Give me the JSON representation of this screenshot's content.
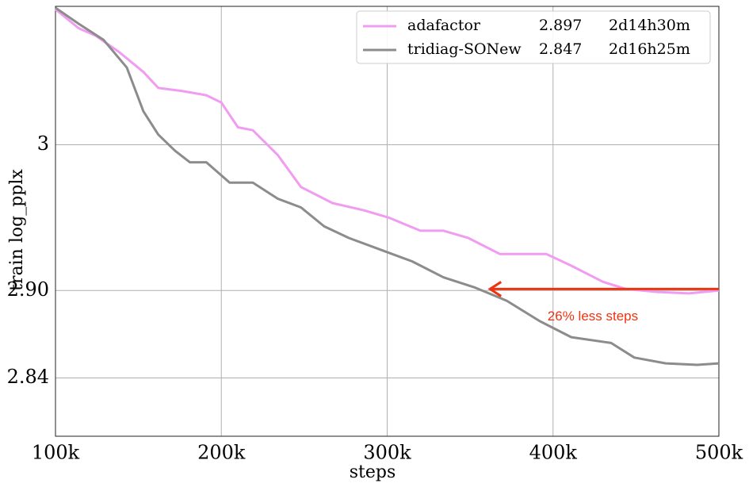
{
  "chart_data": {
    "type": "line",
    "x_label": "steps",
    "y_label": "train log_pplx",
    "xlim": [
      100000,
      500000
    ],
    "ylim": [
      2.8,
      3.095
    ],
    "xticks": [
      {
        "value": 100000,
        "label": "100k"
      },
      {
        "value": 200000,
        "label": "200k"
      },
      {
        "value": 300000,
        "label": "300k"
      },
      {
        "value": 400000,
        "label": "400k"
      },
      {
        "value": 500000,
        "label": "500k"
      }
    ],
    "yticks": [
      2.84,
      {
        "value": 2.9,
        "label": "2.90"
      },
      3
    ],
    "grid": true,
    "legend": "upper right",
    "series": [
      {
        "name": "adafactor",
        "final_value": 2.897,
        "time": "2d14h30m",
        "color": "#f09cf0",
        "x": [
          100000,
          114000,
          124000,
          138000,
          153000,
          162000,
          176000,
          191000,
          200000,
          210000,
          219000,
          234000,
          248000,
          267000,
          286000,
          301000,
          320000,
          334000,
          349000,
          368000,
          396000,
          411000,
          430000,
          444000,
          463000,
          482000,
          500000
        ],
        "values": [
          3.093,
          3.08,
          3.075,
          3.064,
          3.05,
          3.039,
          3.037,
          3.034,
          3.029,
          3.012,
          3.01,
          2.993,
          2.971,
          2.96,
          2.955,
          2.95,
          2.941,
          2.941,
          2.936,
          2.925,
          2.925,
          2.917,
          2.906,
          2.901,
          2.899,
          2.898,
          2.9
        ]
      },
      {
        "name": "tridiag-SONew",
        "final_value": 2.847,
        "time": "2d16h25m",
        "color": "#8c8c8c",
        "x": [
          100000,
          114000,
          129000,
          143000,
          153000,
          162000,
          172000,
          181000,
          191000,
          205000,
          219000,
          234000,
          248000,
          262000,
          277000,
          296000,
          315000,
          334000,
          353000,
          372000,
          392000,
          411000,
          435000,
          449000,
          468000,
          487000,
          500000
        ],
        "values": [
          3.094,
          3.083,
          3.072,
          3.053,
          3.023,
          3.007,
          2.996,
          2.988,
          2.988,
          2.974,
          2.974,
          2.963,
          2.957,
          2.944,
          2.936,
          2.928,
          2.92,
          2.909,
          2.902,
          2.893,
          2.879,
          2.868,
          2.864,
          2.854,
          2.85,
          2.849,
          2.85
        ]
      }
    ],
    "annotation": {
      "text": "26% less steps",
      "color": "#ee3311",
      "arrow_from": [
        500000,
        2.901
      ],
      "arrow_to": [
        362000,
        2.901
      ],
      "text_at": [
        424000,
        2.882
      ]
    }
  }
}
